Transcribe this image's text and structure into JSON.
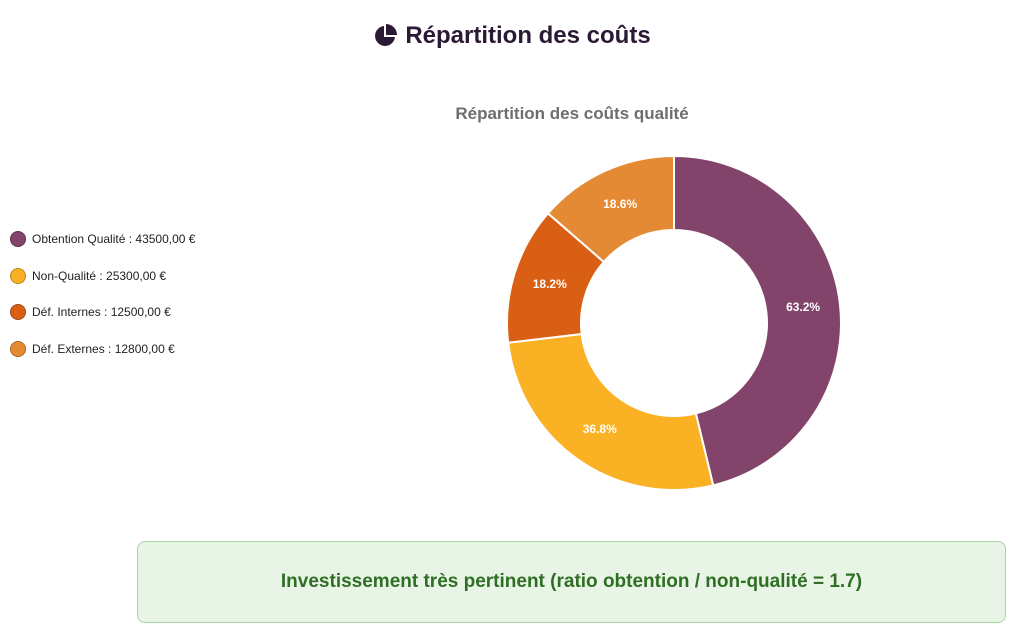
{
  "header": {
    "icon": "pie-chart-icon",
    "title": "Répartition des coûts"
  },
  "chart_data": {
    "type": "pie",
    "title": "Répartition des coûts qualité",
    "legend_position": "left",
    "series": [
      {
        "name": "Obtention Qualité : 43500,00 €",
        "value": 43500,
        "label": "63.2%",
        "color": "#82446a"
      },
      {
        "name": "Non-Qualité : 25300,00 €",
        "value": 25300,
        "label": "36.8%",
        "color": "#fbb124"
      },
      {
        "name": "Déf. Internes : 12500,00 €",
        "value": 12500,
        "label": "18.2%",
        "color": "#d95f14"
      },
      {
        "name": "Déf. Externes : 12800,00 €",
        "value": 12800,
        "label": "18.6%",
        "color": "#e58a34"
      }
    ]
  },
  "verdict": {
    "text": "Investissement très pertinent (ratio obtention / non-qualité = 1.7)",
    "color": "#2e6f24"
  }
}
